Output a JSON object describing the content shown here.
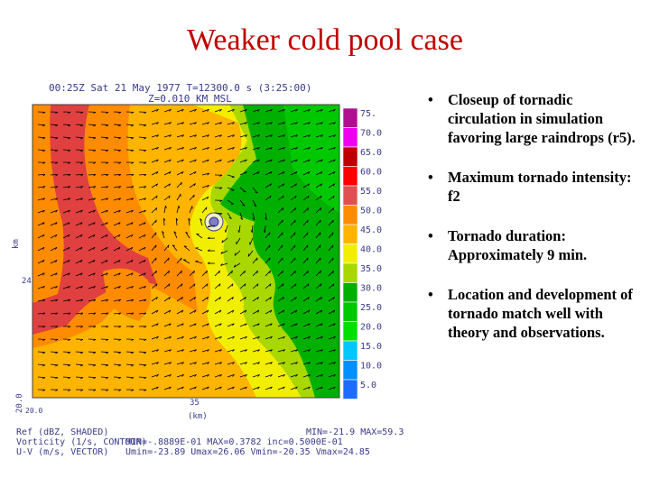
{
  "title": "Weaker cold pool case",
  "figure": {
    "header_line1": "00:25Z Sat 21 May 1977    T=12300.0 s (3:25:00)",
    "header_line2": "Z=0.010 KM MSL",
    "left_axis_label": "km",
    "left_tick": "24",
    "bottom_tick": "35",
    "bottom_axis_label": "(km)",
    "corner_label_1": "20.0",
    "corner_label_2": "20.0",
    "footer_left": [
      "Ref (dBZ, SHADED)",
      "Vorticity (1/s, CONTOUR)",
      "U-V (m/s, VECTOR)"
    ],
    "footer_right_1": "MIN=-21.9 MAX=59.3",
    "footer_right_2": "MIN=-.8889E-01 MAX=0.3782 inc=0.5000E-01",
    "footer_right_3": "Umin=-23.89 Umax=26.06 Vmin=-20.35 Vmax=24.85",
    "colorbar_labels": [
      "75.",
      "70.0",
      "65.0",
      "60.0",
      "55.0",
      "50.0",
      "45.0",
      "40.0",
      "35.0",
      "30.0",
      "25.0",
      "20.0",
      "15.0",
      "10.0",
      "5.0"
    ],
    "colorbar_colors": [
      "#b01090",
      "#f000f0",
      "#c00000",
      "#ff0000",
      "#e05050",
      "#ff8c00",
      "#ffb400",
      "#f2ee00",
      "#a8d800",
      "#00b000",
      "#00c800",
      "#00e000",
      "#00c8ff",
      "#0090ff",
      "#1e6cff"
    ]
  },
  "bullets": [
    "Closeup of tornadic circulation in simulation favoring large raindrops (r5).",
    "Maximum tornado intensity: f2",
    "Tornado duration: Approximately 9 min.",
    "Location and development of tornado match well with theory and observations."
  ],
  "bullet_symbol": "•"
}
